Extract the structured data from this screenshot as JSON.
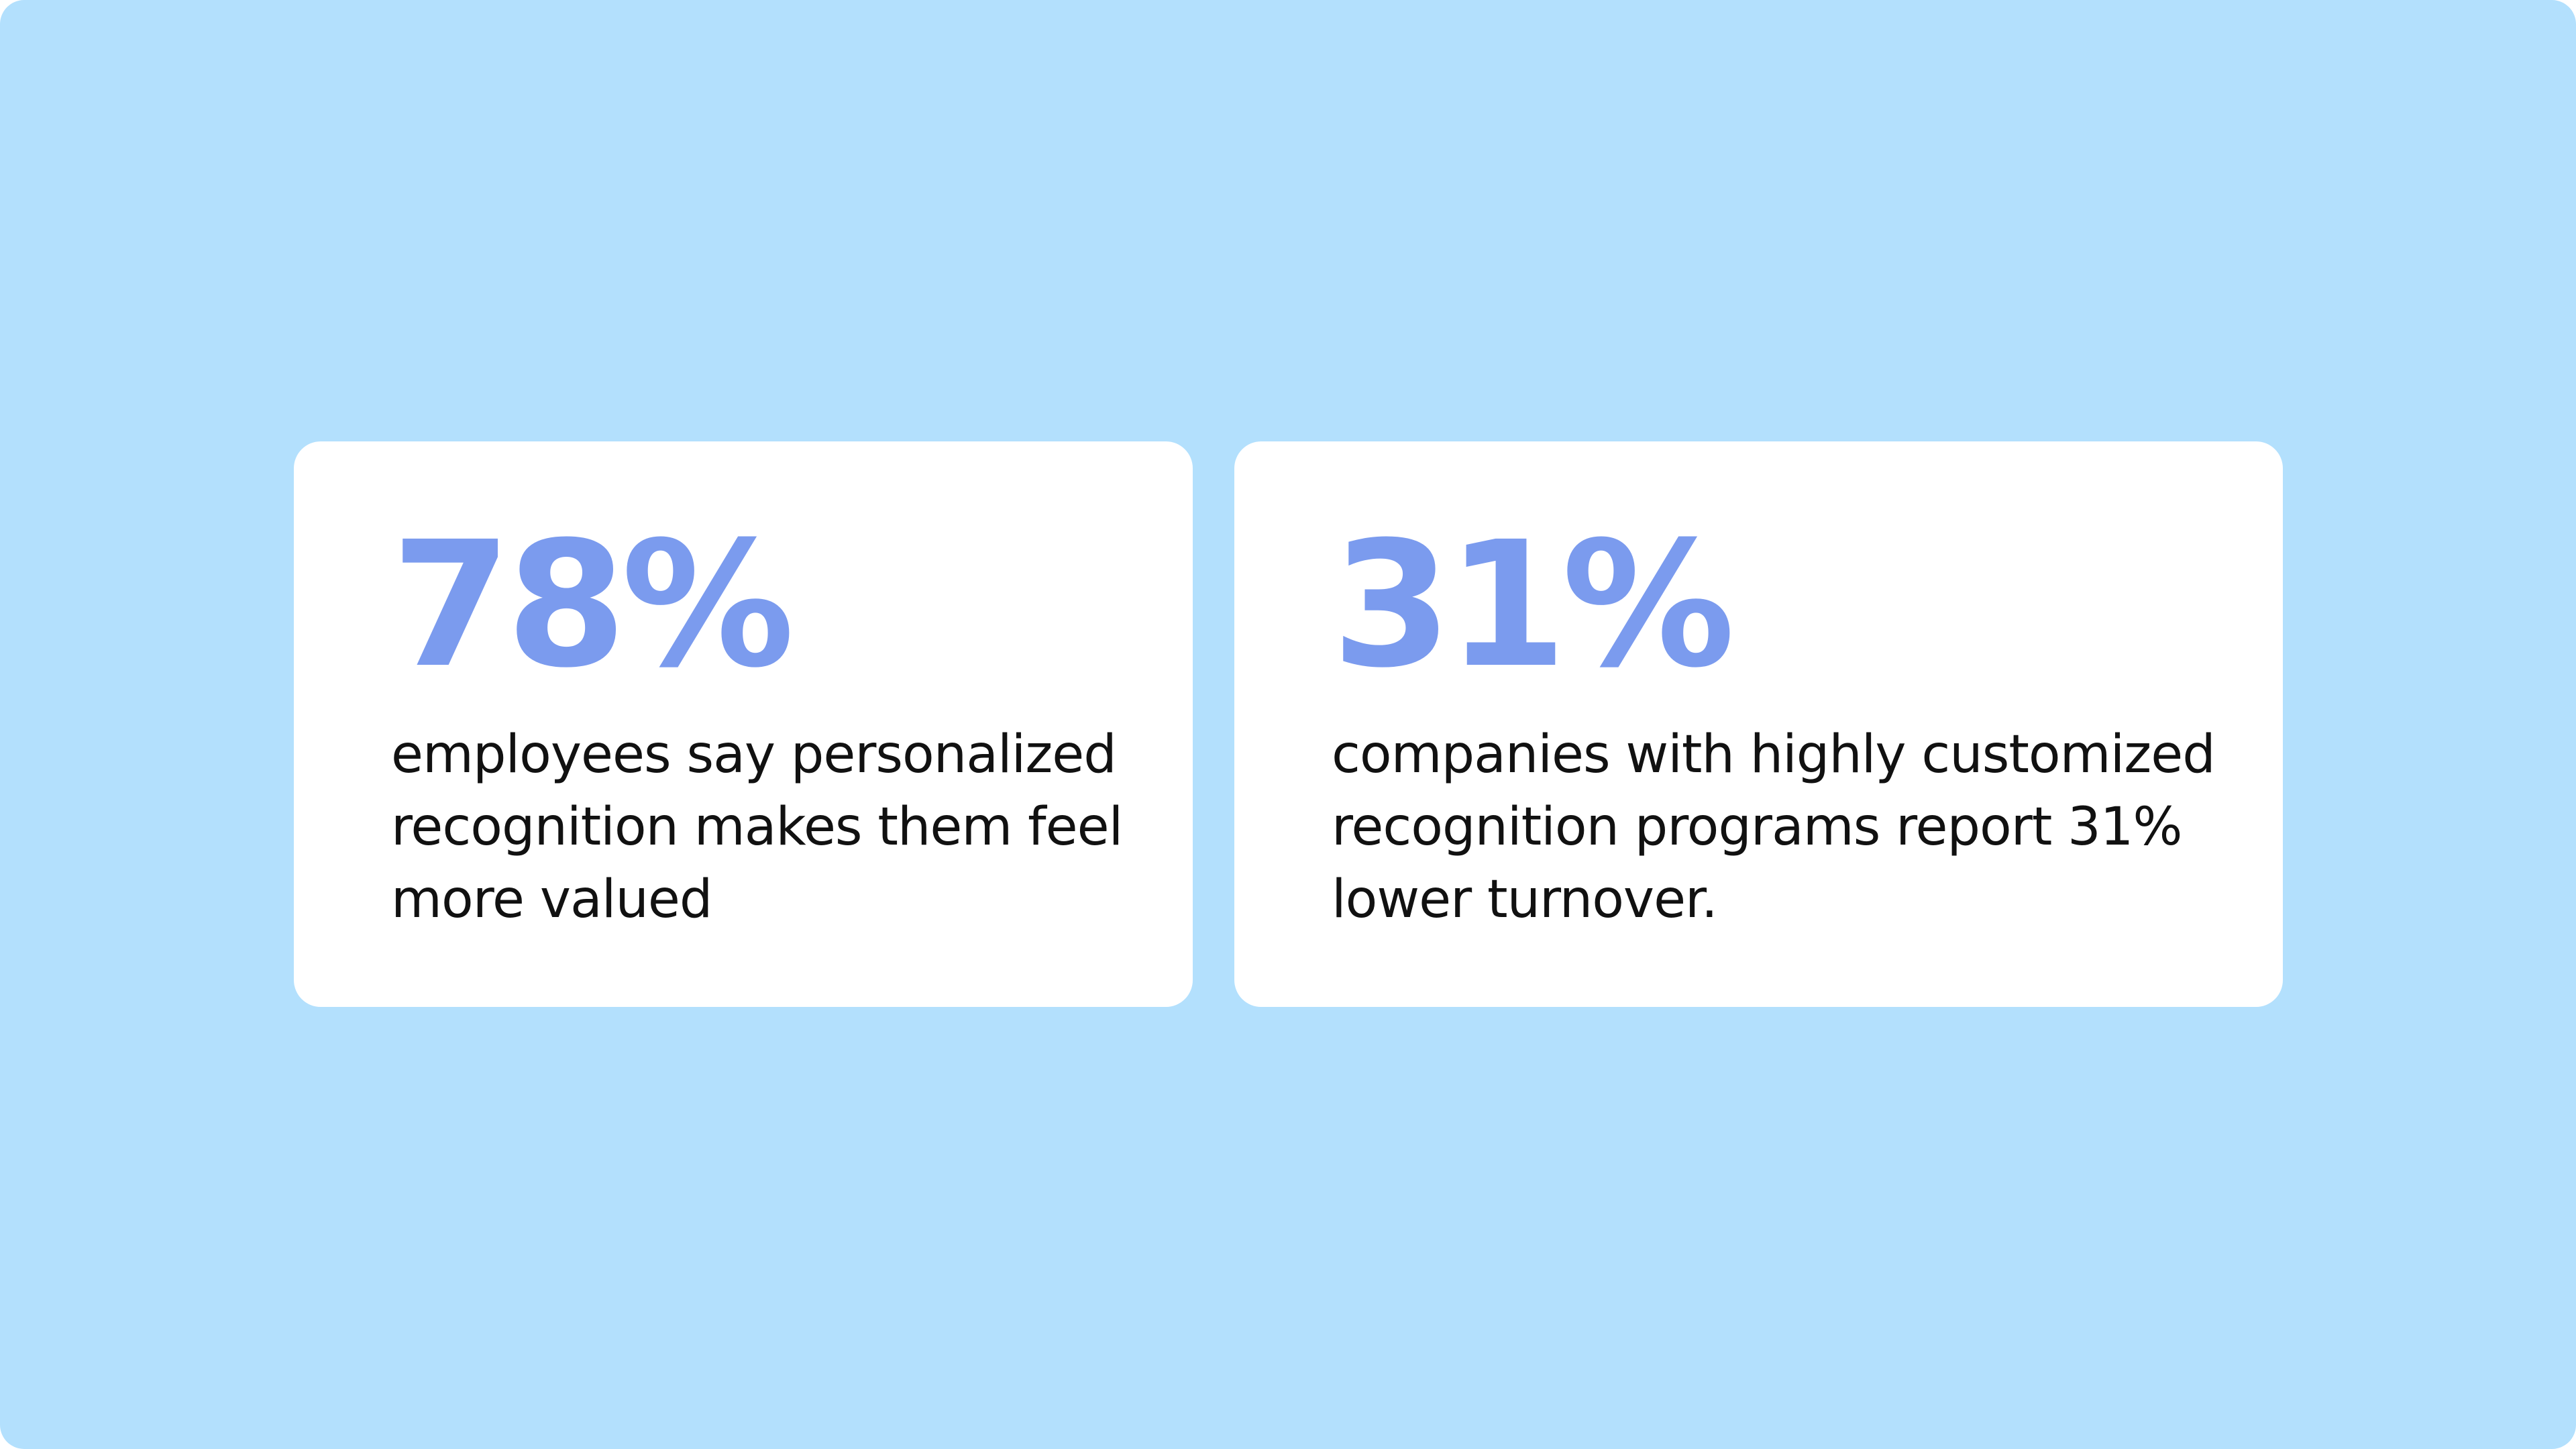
{
  "theme": {
    "background_color": "#b3e0fd",
    "card_color": "#ffffff",
    "accent_color": "#7b9bee",
    "text_color": "#111111"
  },
  "stats": [
    {
      "value": "78%",
      "description_lines": [
        "employees say personalized",
        "recognition makes them feel",
        "more valued"
      ]
    },
    {
      "value": "31%",
      "description_lines": [
        "companies with highly customized",
        "recognition programs report 31%",
        "lower turnover."
      ]
    }
  ]
}
